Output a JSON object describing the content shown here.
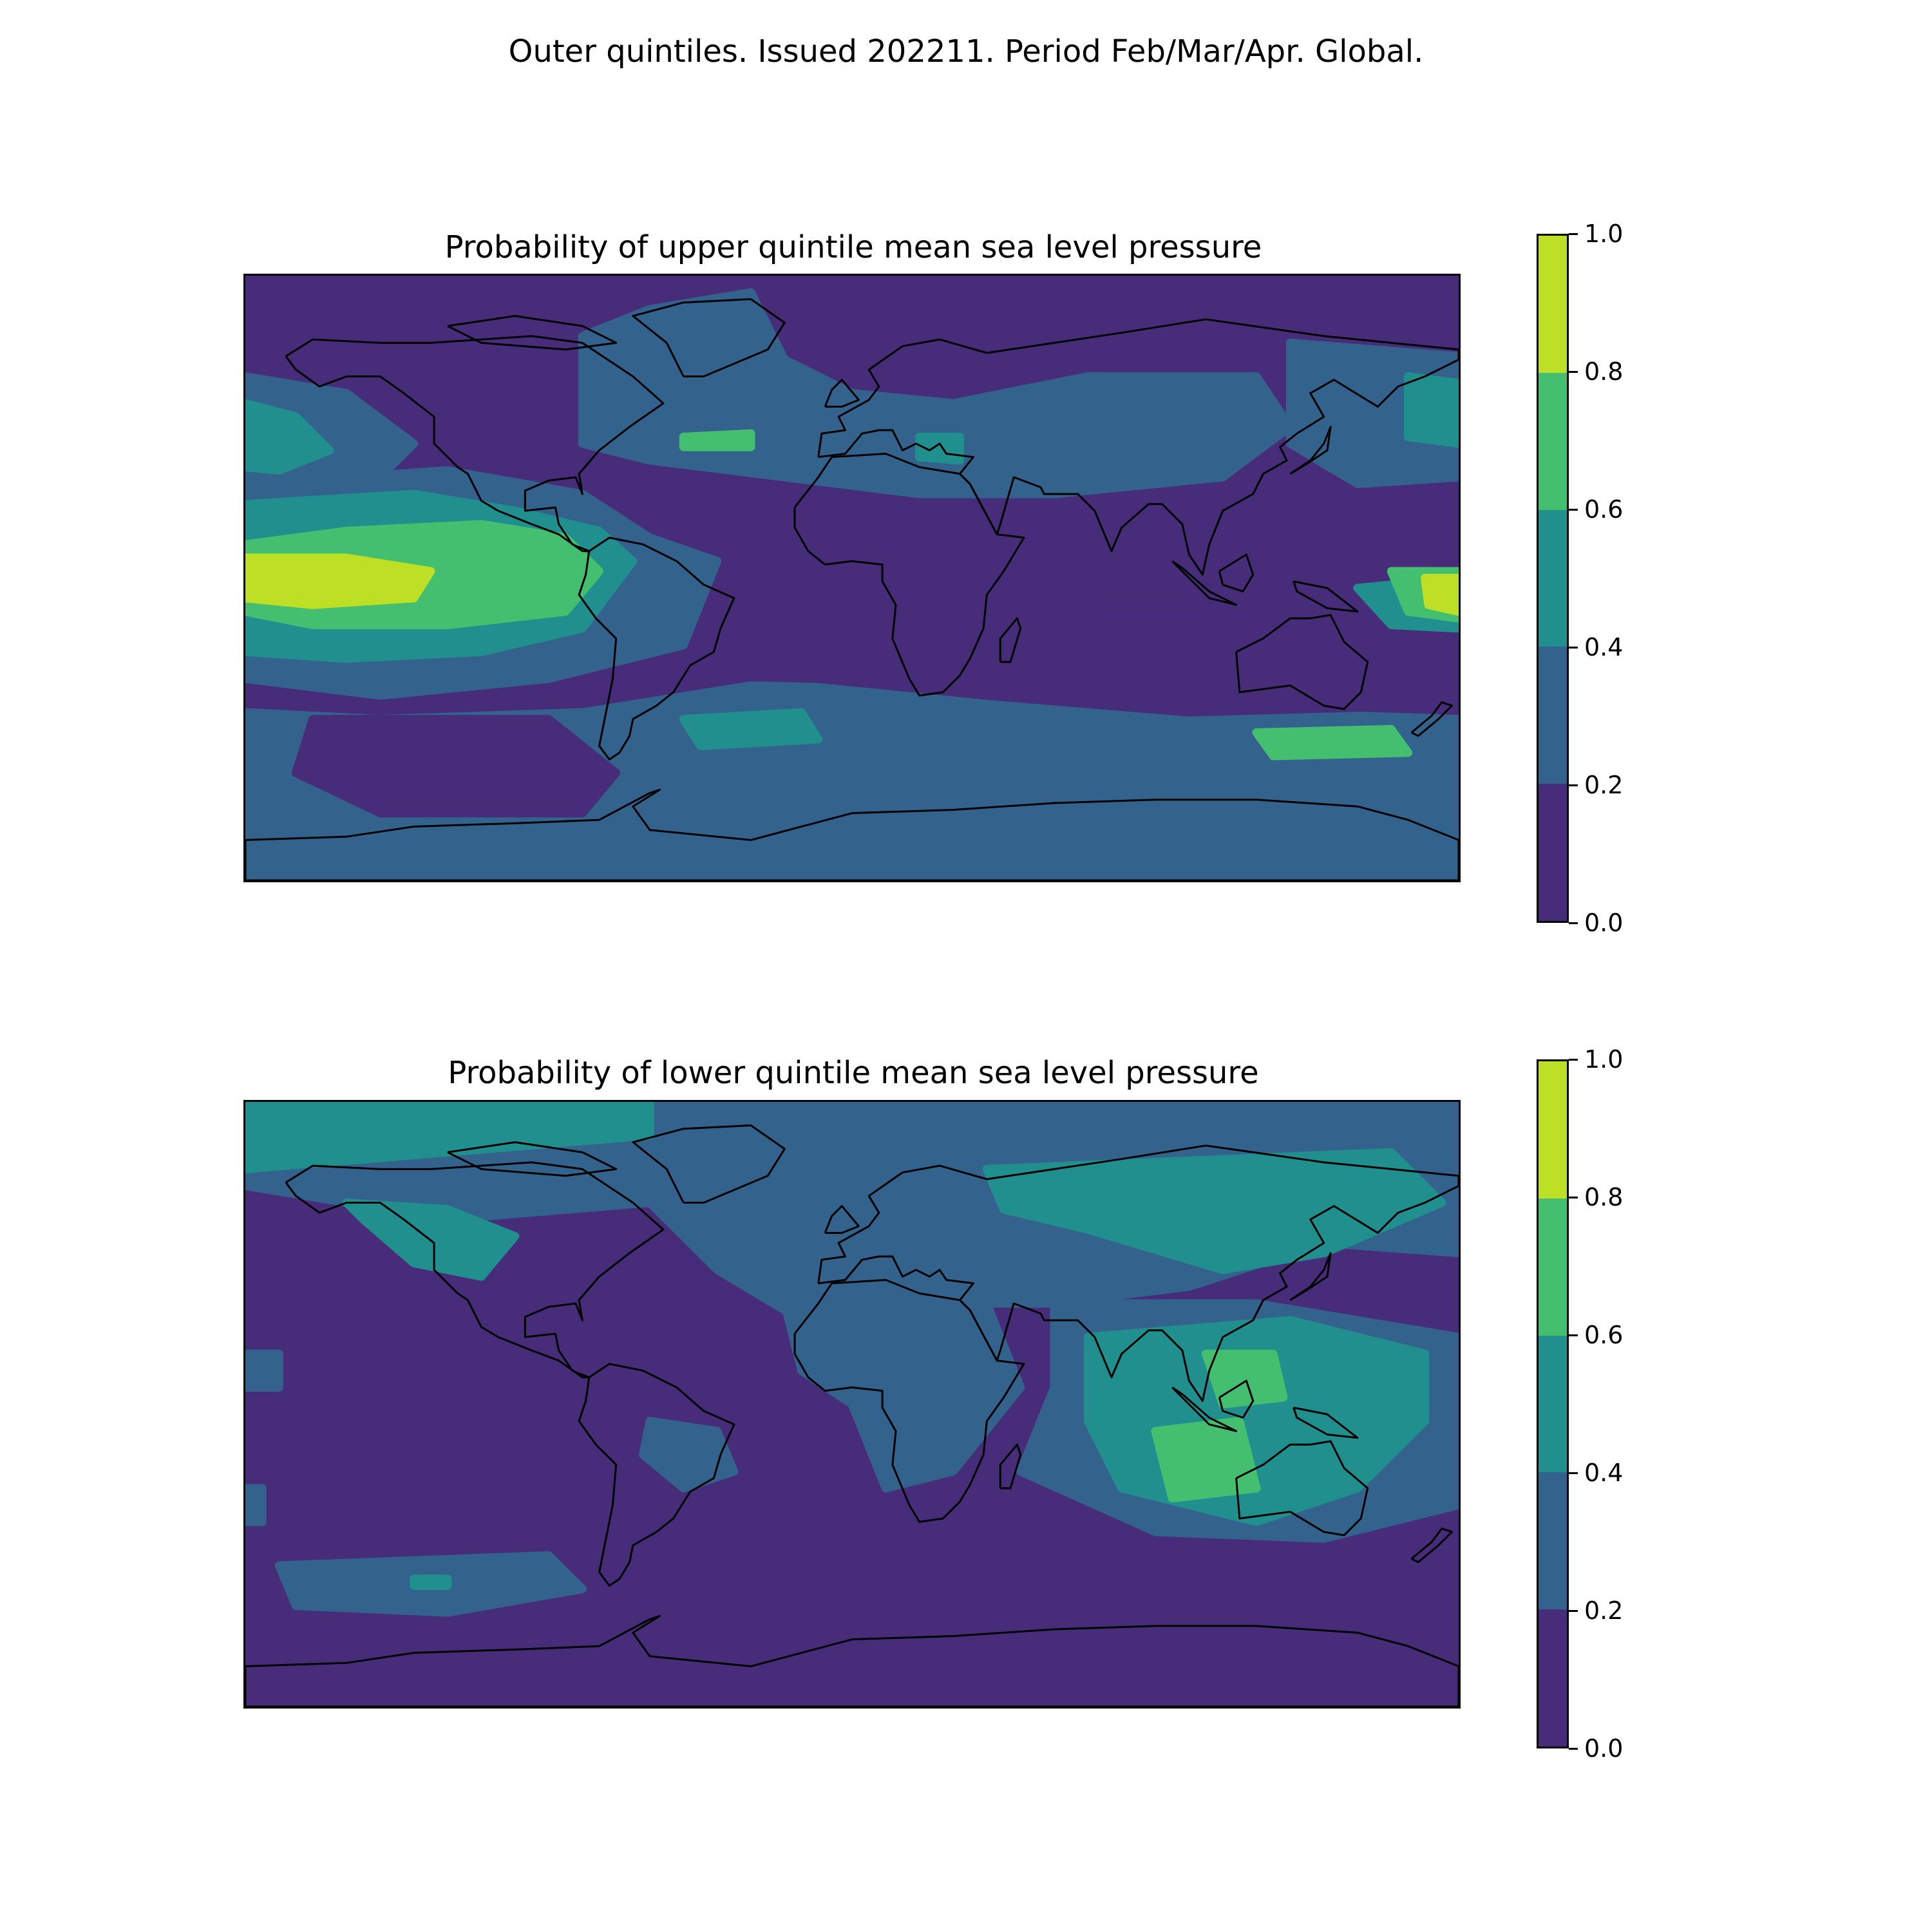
{
  "suptitle": "Outer quintiles. Issued 202211. Period Feb/Mar/Apr. Global.",
  "colormap": {
    "levels": [
      0.0,
      0.2,
      0.4,
      0.6,
      0.8,
      1.0
    ],
    "colors": [
      "#472c7a",
      "#33638d",
      "#218f8d",
      "#44bf70",
      "#bddf26"
    ],
    "tick_labels": [
      "0.0",
      "0.2",
      "0.4",
      "0.6",
      "0.8",
      "1.0"
    ]
  },
  "coastline_color": "#000000",
  "panels": [
    {
      "id": "upper",
      "title": "Probability of upper quintile mean sea level pressure",
      "background_class": 0,
      "regions": [
        {
          "name": "southern-ocean-belt",
          "class": 1,
          "poly": [
            [
              -180,
              -90
            ],
            [
              180,
              -90
            ],
            [
              180,
              -42
            ],
            [
              120,
              -40
            ],
            [
              60,
              -38
            ],
            [
              10,
              -33
            ],
            [
              -30,
              -32
            ],
            [
              -80,
              -40
            ],
            [
              -140,
              -42
            ],
            [
              -180,
              -40
            ]
          ]
        },
        {
          "name": "south-pacific-low",
          "class": 0,
          "poly": [
            [
              -160,
              -42
            ],
            [
              -90,
              -42
            ],
            [
              -70,
              -58
            ],
            [
              -80,
              -70
            ],
            [
              -140,
              -70
            ],
            [
              -165,
              -58
            ]
          ]
        },
        {
          "name": "south-atlantic-indian-low",
          "class": 0,
          "poly": [
            [
              -30,
              -28
            ],
            [
              20,
              -22
            ],
            [
              70,
              -10
            ],
            [
              120,
              -10
            ],
            [
              150,
              -15
            ],
            [
              175,
              -25
            ],
            [
              170,
              -38
            ],
            [
              100,
              -40
            ],
            [
              40,
              -35
            ],
            [
              -10,
              -30
            ]
          ]
        },
        {
          "name": "pacific-tropics-blue",
          "class": 1,
          "poly": [
            [
              -180,
              28
            ],
            [
              -120,
              32
            ],
            [
              -80,
              25
            ],
            [
              -60,
              12
            ],
            [
              -40,
              5
            ],
            [
              -50,
              -20
            ],
            [
              -90,
              -30
            ],
            [
              -140,
              -35
            ],
            [
              -180,
              -30
            ]
          ]
        },
        {
          "name": "pacific-tropics-teal",
          "class": 2,
          "poly": [
            [
              -180,
              22
            ],
            [
              -130,
              25
            ],
            [
              -100,
              20
            ],
            [
              -75,
              14
            ],
            [
              -65,
              5
            ],
            [
              -80,
              -15
            ],
            [
              -110,
              -22
            ],
            [
              -150,
              -24
            ],
            [
              -180,
              -22
            ]
          ]
        },
        {
          "name": "pacific-tropics-green",
          "class": 3,
          "poly": [
            [
              -180,
              10
            ],
            [
              -150,
              14
            ],
            [
              -110,
              16
            ],
            [
              -85,
              12
            ],
            [
              -75,
              2
            ],
            [
              -85,
              -10
            ],
            [
              -120,
              -14
            ],
            [
              -160,
              -14
            ],
            [
              -180,
              -10
            ]
          ]
        },
        {
          "name": "pacific-core-yellow",
          "class": 4,
          "poly": [
            [
              -180,
              6
            ],
            [
              -150,
              6
            ],
            [
              -125,
              2
            ],
            [
              -130,
              -6
            ],
            [
              -160,
              -8
            ],
            [
              -180,
              -6
            ]
          ]
        },
        {
          "name": "west-pacific-teal",
          "class": 2,
          "poly": [
            [
              150,
              -3
            ],
            [
              180,
              0
            ],
            [
              180,
              -15
            ],
            [
              160,
              -14
            ]
          ]
        },
        {
          "name": "west-pacific-green",
          "class": 3,
          "poly": [
            [
              160,
              2
            ],
            [
              180,
              2
            ],
            [
              180,
              -12
            ],
            [
              165,
              -10
            ]
          ]
        },
        {
          "name": "west-pacific-yellow",
          "class": 4,
          "poly": [
            [
              170,
              0
            ],
            [
              180,
              0
            ],
            [
              180,
              -10
            ],
            [
              171,
              -8
            ]
          ]
        },
        {
          "name": "north-pacific-blue",
          "class": 1,
          "poly": [
            [
              -180,
              60
            ],
            [
              -150,
              55
            ],
            [
              -130,
              40
            ],
            [
              -140,
              30
            ],
            [
              -170,
              25
            ],
            [
              -180,
              28
            ]
          ]
        },
        {
          "name": "north-pacific-teal",
          "class": 2,
          "poly": [
            [
              -180,
              52
            ],
            [
              -165,
              48
            ],
            [
              -155,
              38
            ],
            [
              -170,
              32
            ],
            [
              -180,
              33
            ]
          ]
        },
        {
          "name": "kuroshio-blue",
          "class": 1,
          "poly": [
            [
              130,
              70
            ],
            [
              180,
              66
            ],
            [
              180,
              30
            ],
            [
              150,
              28
            ],
            [
              130,
              40
            ]
          ]
        },
        {
          "name": "kuroshio-teal",
          "class": 2,
          "poly": [
            [
              165,
              60
            ],
            [
              180,
              58
            ],
            [
              180,
              40
            ],
            [
              165,
              42
            ]
          ]
        },
        {
          "name": "north-atlantic-eurasia-blue",
          "class": 1,
          "poly": [
            [
              -80,
              72
            ],
            [
              -60,
              80
            ],
            [
              -30,
              85
            ],
            [
              -20,
              65
            ],
            [
              0,
              55
            ],
            [
              30,
              52
            ],
            [
              70,
              60
            ],
            [
              120,
              60
            ],
            [
              130,
              45
            ],
            [
              110,
              30
            ],
            [
              60,
              25
            ],
            [
              20,
              25
            ],
            [
              -20,
              30
            ],
            [
              -60,
              35
            ],
            [
              -80,
              40
            ]
          ]
        },
        {
          "name": "mediterranean-teal",
          "class": 2,
          "poly": [
            [
              20,
              42
            ],
            [
              32,
              42
            ],
            [
              32,
              35
            ],
            [
              20,
              36
            ]
          ]
        },
        {
          "name": "atlantic-green-patch",
          "class": 3,
          "poly": [
            [
              -50,
              42
            ],
            [
              -30,
              43
            ],
            [
              -30,
              39
            ],
            [
              -50,
              39
            ]
          ]
        },
        {
          "name": "south-atlantic-teal",
          "class": 2,
          "poly": [
            [
              -50,
              -42
            ],
            [
              -15,
              -40
            ],
            [
              -10,
              -48
            ],
            [
              -45,
              -50
            ]
          ]
        },
        {
          "name": "south-indian-green",
          "class": 3,
          "poly": [
            [
              120,
              -46
            ],
            [
              160,
              -45
            ],
            [
              165,
              -52
            ],
            [
              125,
              -53
            ]
          ]
        }
      ],
      "coastline_color": "#000000"
    },
    {
      "id": "lower",
      "title": "Probability of lower quintile mean sea level pressure",
      "background_class": 0,
      "regions": [
        {
          "name": "arctic-blue",
          "class": 1,
          "poly": [
            [
              -180,
              90
            ],
            [
              180,
              90
            ],
            [
              180,
              45
            ],
            [
              140,
              48
            ],
            [
              100,
              35
            ],
            [
              60,
              30
            ],
            [
              20,
              30
            ],
            [
              -10,
              22
            ],
            [
              -40,
              40
            ],
            [
              -60,
              60
            ],
            [
              -120,
              55
            ],
            [
              -180,
              65
            ]
          ]
        },
        {
          "name": "arctic-teal-west",
          "class": 2,
          "poly": [
            [
              -180,
              90
            ],
            [
              -60,
              90
            ],
            [
              -60,
              80
            ],
            [
              -120,
              75
            ],
            [
              -180,
              70
            ]
          ]
        },
        {
          "name": "north-america-teal",
          "class": 2,
          "poly": [
            [
              -150,
              60
            ],
            [
              -120,
              58
            ],
            [
              -100,
              50
            ],
            [
              -110,
              38
            ],
            [
              -130,
              42
            ],
            [
              -145,
              55
            ]
          ]
        },
        {
          "name": "siberia-teal",
          "class": 2,
          "poly": [
            [
              40,
              70
            ],
            [
              160,
              75
            ],
            [
              175,
              60
            ],
            [
              140,
              45
            ],
            [
              110,
              40
            ],
            [
              70,
              52
            ],
            [
              45,
              58
            ]
          ]
        },
        {
          "name": "maritime-blue",
          "class": 1,
          "poly": [
            [
              60,
              30
            ],
            [
              120,
              30
            ],
            [
              180,
              20
            ],
            [
              180,
              -30
            ],
            [
              140,
              -40
            ],
            [
              90,
              -38
            ],
            [
              50,
              -20
            ],
            [
              60,
              5
            ]
          ]
        },
        {
          "name": "maritime-teal",
          "class": 2,
          "poly": [
            [
              70,
              20
            ],
            [
              130,
              25
            ],
            [
              170,
              15
            ],
            [
              170,
              -5
            ],
            [
              150,
              -25
            ],
            [
              120,
              -35
            ],
            [
              80,
              -25
            ],
            [
              70,
              -5
            ]
          ]
        },
        {
          "name": "maritime-green",
          "class": 3,
          "poly": [
            [
              90,
              -8
            ],
            [
              115,
              -5
            ],
            [
              120,
              -25
            ],
            [
              95,
              -28
            ]
          ]
        },
        {
          "name": "south-china-sea-green",
          "class": 3,
          "poly": [
            [
              105,
              15
            ],
            [
              125,
              15
            ],
            [
              128,
              2
            ],
            [
              110,
              0
            ]
          ]
        },
        {
          "name": "south-pacific-blue",
          "class": 1,
          "poly": [
            [
              -170,
              -48
            ],
            [
              -90,
              -45
            ],
            [
              -80,
              -55
            ],
            [
              -120,
              -62
            ],
            [
              -165,
              -60
            ]
          ]
        },
        {
          "name": "south-pacific-teal-dot",
          "class": 2,
          "poly": [
            [
              -130,
              -52
            ],
            [
              -120,
              -52
            ],
            [
              -120,
              -54
            ],
            [
              -130,
              -54
            ]
          ]
        },
        {
          "name": "south-america-blue",
          "class": 1,
          "poly": [
            [
              -60,
              -5
            ],
            [
              -40,
              -8
            ],
            [
              -35,
              -20
            ],
            [
              -50,
              -25
            ],
            [
              -62,
              -15
            ]
          ]
        },
        {
          "name": "africa-blue",
          "class": 1,
          "poly": [
            [
              -20,
              30
            ],
            [
              40,
              30
            ],
            [
              50,
              5
            ],
            [
              30,
              -20
            ],
            [
              10,
              -25
            ],
            [
              0,
              0
            ],
            [
              -15,
              10
            ]
          ]
        },
        {
          "name": "east-pacific-blue",
          "class": 1,
          "poly": [
            [
              -180,
              15
            ],
            [
              -170,
              15
            ],
            [
              -170,
              5
            ],
            [
              -180,
              5
            ]
          ]
        },
        {
          "name": "west-edge-blue",
          "class": 1,
          "poly": [
            [
              -180,
              -25
            ],
            [
              -175,
              -25
            ],
            [
              -175,
              -35
            ],
            [
              -180,
              -35
            ]
          ]
        }
      ],
      "coastline_color": "#000000"
    }
  ]
}
